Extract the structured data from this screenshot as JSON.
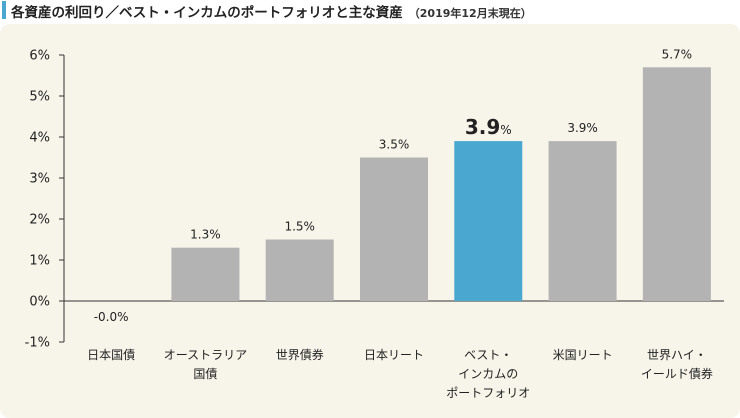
{
  "header": {
    "title": "各資産の利回り／ベスト・インカムのポートフォリオと主な資産",
    "subtitle": "（2019年12月末現在）"
  },
  "colors": {
    "accent": "#4aa8d0",
    "bar": "#b3b3b3",
    "bar_highlight": "#4aa8d0",
    "panel_bg": "#f7f4ea",
    "axis": "#333333"
  },
  "chart_data": {
    "type": "bar",
    "title": "各資産の利回り／ベスト・インカムのポートフォリオと主な資産",
    "subtitle": "（2019年12月末現在）",
    "xlabel": "",
    "ylabel": "",
    "ylim": [
      -1,
      6
    ],
    "yticks": [
      6,
      5,
      4,
      3,
      2,
      1,
      0,
      -1
    ],
    "ytick_labels": [
      "6%",
      "5%",
      "4%",
      "3%",
      "2%",
      "1%",
      "0%",
      "-1%"
    ],
    "grid": false,
    "categories": [
      [
        "日本国債"
      ],
      [
        "オーストラリア",
        "国債"
      ],
      [
        "世界債券"
      ],
      [
        "日本リート"
      ],
      [
        "ベスト・",
        "インカムの",
        "ポートフォリオ"
      ],
      [
        "米国リート"
      ],
      [
        "世界ハイ・",
        "イールド債券"
      ]
    ],
    "values": [
      -0.0,
      1.3,
      1.5,
      3.5,
      3.9,
      3.9,
      5.7
    ],
    "value_labels": [
      "-0.0%",
      "1.3%",
      "1.5%",
      "3.5%",
      "3.9",
      "3.9%",
      "5.7%"
    ],
    "emphasis_unit": "%",
    "highlight_index": 4
  }
}
